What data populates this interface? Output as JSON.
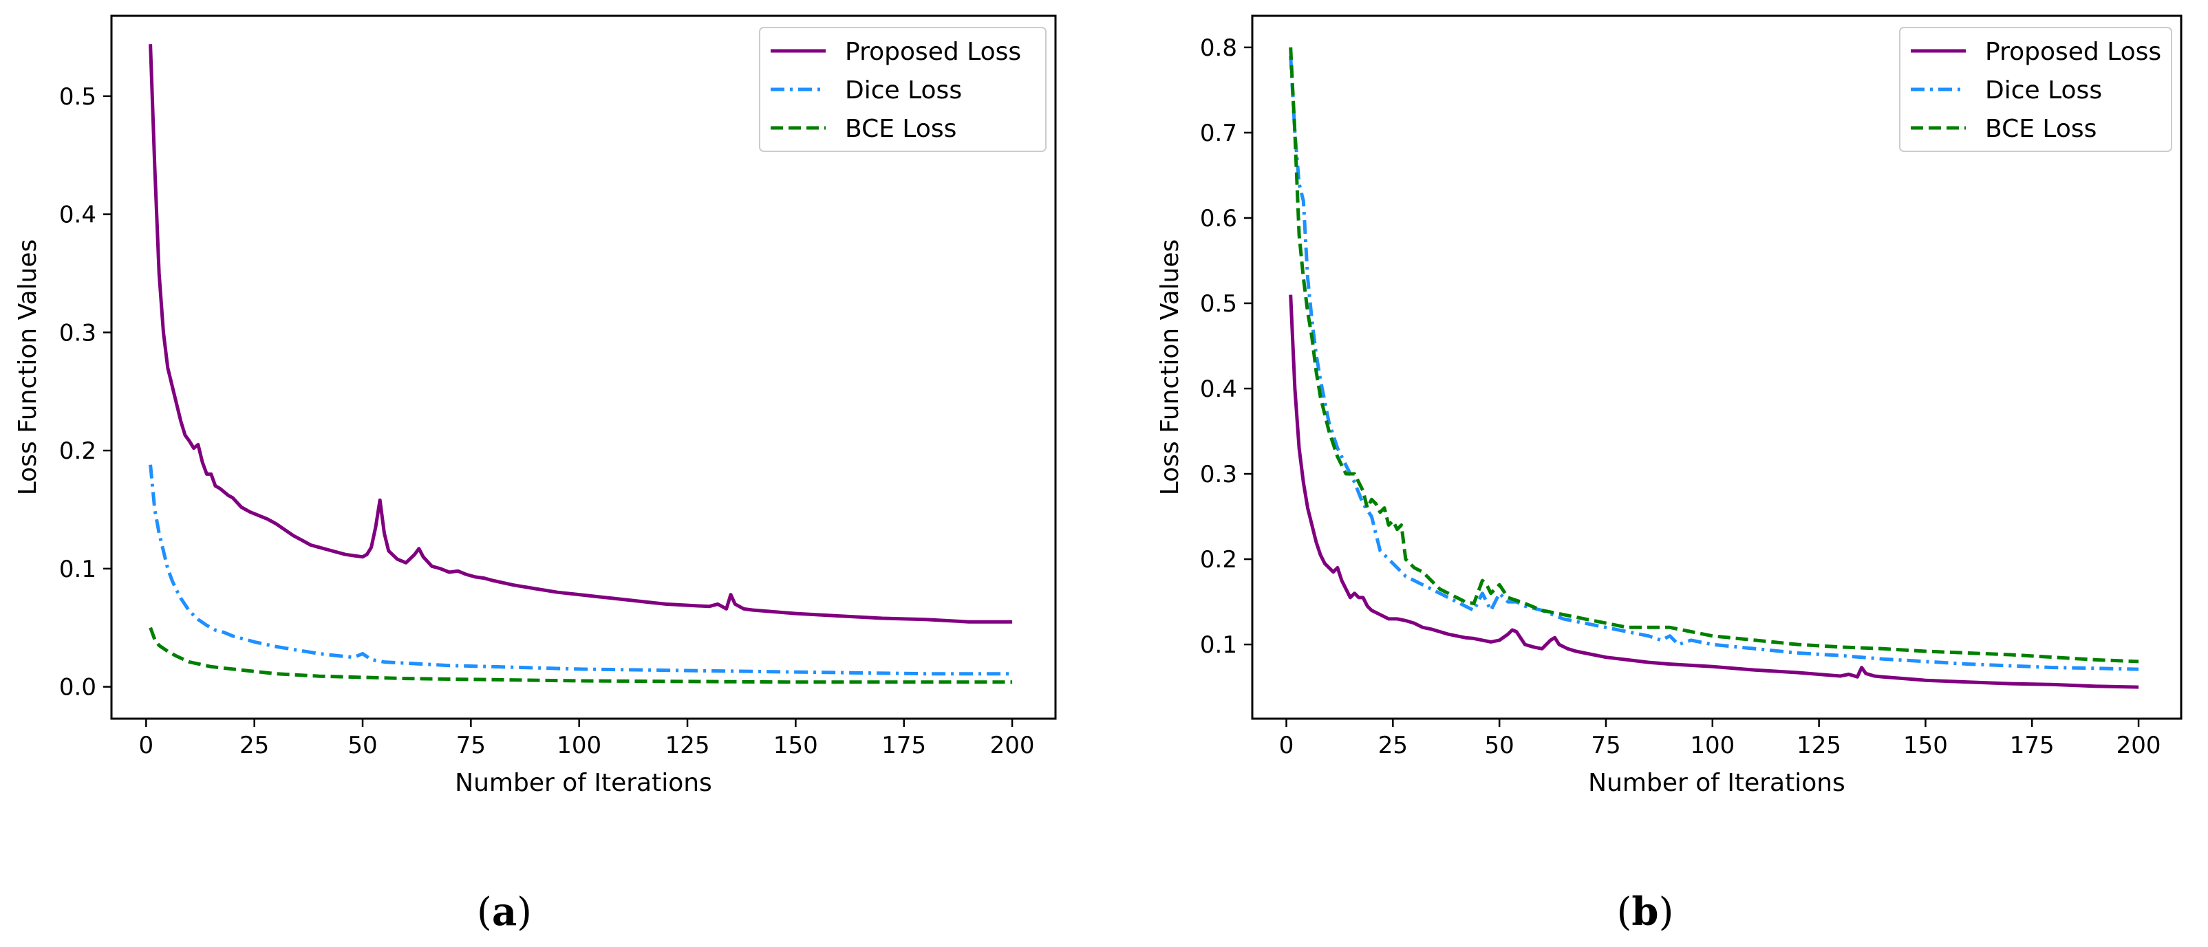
{
  "figure": {
    "panels": [
      {
        "label": "a"
      },
      {
        "label": "b"
      }
    ]
  },
  "chart_data": [
    {
      "type": "line",
      "panel": "a",
      "title": "",
      "xlabel": "Number of Iterations",
      "ylabel": "Loss Function Values",
      "xlim": [
        -8,
        210
      ],
      "ylim": [
        -0.027,
        0.568
      ],
      "xticks": [
        0,
        25,
        50,
        75,
        100,
        125,
        150,
        175,
        200
      ],
      "yticks": [
        0.0,
        0.1,
        0.2,
        0.3,
        0.4,
        0.5
      ],
      "ytick_labels": [
        "0.0",
        "0.1",
        "0.2",
        "0.3",
        "0.4",
        "0.5"
      ],
      "grid": false,
      "legend_position": "top-right",
      "series": [
        {
          "name": "Proposed Loss",
          "color": "#800080",
          "style": "solid",
          "x": [
            1,
            2,
            3,
            4,
            5,
            6,
            7,
            8,
            9,
            10,
            11,
            12,
            13,
            14,
            15,
            16,
            17,
            18,
            19,
            20,
            22,
            24,
            26,
            28,
            30,
            32,
            34,
            36,
            38,
            40,
            42,
            44,
            46,
            48,
            50,
            51,
            52,
            53,
            54,
            55,
            56,
            58,
            60,
            62,
            63,
            64,
            66,
            68,
            70,
            72,
            74,
            76,
            78,
            80,
            85,
            90,
            95,
            100,
            105,
            110,
            115,
            120,
            125,
            130,
            132,
            134,
            135,
            136,
            138,
            140,
            150,
            160,
            170,
            180,
            190,
            200
          ],
          "values": [
            0.544,
            0.44,
            0.35,
            0.3,
            0.27,
            0.255,
            0.24,
            0.225,
            0.213,
            0.208,
            0.202,
            0.205,
            0.19,
            0.18,
            0.18,
            0.17,
            0.168,
            0.165,
            0.162,
            0.16,
            0.152,
            0.148,
            0.145,
            0.142,
            0.138,
            0.133,
            0.128,
            0.124,
            0.12,
            0.118,
            0.116,
            0.114,
            0.112,
            0.111,
            0.11,
            0.112,
            0.118,
            0.135,
            0.158,
            0.13,
            0.115,
            0.108,
            0.105,
            0.112,
            0.117,
            0.11,
            0.102,
            0.1,
            0.097,
            0.098,
            0.095,
            0.093,
            0.092,
            0.09,
            0.086,
            0.083,
            0.08,
            0.078,
            0.076,
            0.074,
            0.072,
            0.07,
            0.069,
            0.068,
            0.07,
            0.066,
            0.078,
            0.07,
            0.066,
            0.065,
            0.062,
            0.06,
            0.058,
            0.057,
            0.055,
            0.055
          ]
        },
        {
          "name": "Dice Loss",
          "color": "#1e90ff",
          "style": "dashdot",
          "x": [
            1,
            2,
            3,
            4,
            5,
            6,
            7,
            8,
            10,
            12,
            14,
            16,
            18,
            20,
            25,
            30,
            35,
            40,
            45,
            48,
            50,
            52,
            55,
            60,
            70,
            80,
            90,
            100,
            120,
            140,
            160,
            180,
            200
          ],
          "values": [
            0.188,
            0.15,
            0.13,
            0.115,
            0.1,
            0.09,
            0.082,
            0.075,
            0.064,
            0.057,
            0.052,
            0.048,
            0.046,
            0.043,
            0.038,
            0.034,
            0.031,
            0.028,
            0.026,
            0.025,
            0.028,
            0.023,
            0.021,
            0.02,
            0.018,
            0.017,
            0.016,
            0.015,
            0.014,
            0.013,
            0.012,
            0.011,
            0.011
          ]
        },
        {
          "name": "BCE Loss",
          "color": "#008000",
          "style": "dashed",
          "x": [
            1,
            2,
            3,
            5,
            7,
            10,
            15,
            20,
            25,
            30,
            40,
            50,
            60,
            80,
            100,
            150,
            200
          ],
          "values": [
            0.05,
            0.04,
            0.035,
            0.03,
            0.026,
            0.021,
            0.017,
            0.015,
            0.013,
            0.011,
            0.009,
            0.008,
            0.007,
            0.006,
            0.005,
            0.004,
            0.004
          ]
        }
      ]
    },
    {
      "type": "line",
      "panel": "b",
      "title": "",
      "xlabel": "Number of Iterations",
      "ylabel": "Loss Function Values",
      "xlim": [
        -8,
        210
      ],
      "ylim": [
        0.013,
        0.837
      ],
      "xticks": [
        0,
        25,
        50,
        75,
        100,
        125,
        150,
        175,
        200
      ],
      "yticks": [
        0.1,
        0.2,
        0.3,
        0.4,
        0.5,
        0.6,
        0.7,
        0.8
      ],
      "ytick_labels": [
        "0.1",
        "0.2",
        "0.3",
        "0.4",
        "0.5",
        "0.6",
        "0.7",
        "0.8"
      ],
      "grid": false,
      "legend_position": "top-right",
      "series": [
        {
          "name": "Proposed Loss",
          "color": "#800080",
          "style": "solid",
          "x": [
            1,
            2,
            3,
            4,
            5,
            6,
            7,
            8,
            9,
            10,
            11,
            12,
            13,
            14,
            15,
            16,
            17,
            18,
            19,
            20,
            22,
            24,
            26,
            28,
            30,
            32,
            34,
            36,
            38,
            40,
            42,
            44,
            46,
            48,
            50,
            52,
            53,
            54,
            56,
            58,
            60,
            62,
            63,
            64,
            66,
            68,
            70,
            75,
            80,
            85,
            90,
            100,
            110,
            120,
            130,
            132,
            134,
            135,
            136,
            138,
            140,
            150,
            160,
            170,
            180,
            190,
            200
          ],
          "values": [
            0.51,
            0.4,
            0.33,
            0.29,
            0.26,
            0.24,
            0.22,
            0.205,
            0.195,
            0.19,
            0.185,
            0.19,
            0.175,
            0.165,
            0.155,
            0.16,
            0.155,
            0.155,
            0.145,
            0.14,
            0.135,
            0.13,
            0.13,
            0.128,
            0.125,
            0.12,
            0.118,
            0.115,
            0.112,
            0.11,
            0.108,
            0.107,
            0.105,
            0.103,
            0.105,
            0.112,
            0.117,
            0.115,
            0.1,
            0.097,
            0.095,
            0.105,
            0.108,
            0.1,
            0.095,
            0.092,
            0.09,
            0.085,
            0.082,
            0.079,
            0.077,
            0.074,
            0.07,
            0.067,
            0.063,
            0.065,
            0.062,
            0.073,
            0.066,
            0.063,
            0.062,
            0.058,
            0.056,
            0.054,
            0.053,
            0.051,
            0.05
          ]
        },
        {
          "name": "Dice Loss",
          "color": "#1e90ff",
          "style": "dashdot",
          "x": [
            1,
            2,
            3,
            4,
            5,
            6,
            7,
            8,
            10,
            12,
            14,
            16,
            18,
            20,
            22,
            24,
            26,
            28,
            30,
            32,
            34,
            36,
            38,
            40,
            42,
            44,
            46,
            48,
            50,
            52,
            54,
            56,
            60,
            65,
            70,
            75,
            80,
            85,
            88,
            90,
            92,
            95,
            100,
            110,
            120,
            130,
            140,
            150,
            160,
            170,
            180,
            190,
            200
          ],
          "values": [
            0.79,
            0.7,
            0.64,
            0.62,
            0.53,
            0.48,
            0.44,
            0.41,
            0.36,
            0.33,
            0.31,
            0.29,
            0.265,
            0.25,
            0.21,
            0.2,
            0.19,
            0.18,
            0.175,
            0.17,
            0.165,
            0.16,
            0.155,
            0.15,
            0.145,
            0.14,
            0.16,
            0.14,
            0.16,
            0.15,
            0.15,
            0.145,
            0.14,
            0.13,
            0.125,
            0.12,
            0.115,
            0.11,
            0.105,
            0.11,
            0.1,
            0.105,
            0.1,
            0.095,
            0.09,
            0.087,
            0.083,
            0.08,
            0.077,
            0.075,
            0.073,
            0.072,
            0.071
          ]
        },
        {
          "name": "BCE Loss",
          "color": "#008000",
          "style": "dashed",
          "x": [
            1,
            2,
            3,
            4,
            5,
            6,
            7,
            8,
            10,
            12,
            14,
            16,
            17,
            18,
            19,
            20,
            21,
            22,
            23,
            24,
            25,
            26,
            27,
            28,
            29,
            30,
            32,
            34,
            36,
            38,
            40,
            42,
            44,
            46,
            47,
            48,
            50,
            52,
            55,
            60,
            65,
            70,
            75,
            80,
            85,
            90,
            95,
            100,
            110,
            120,
            130,
            140,
            150,
            160,
            170,
            180,
            190,
            200
          ],
          "values": [
            0.8,
            0.7,
            0.58,
            0.53,
            0.49,
            0.46,
            0.42,
            0.39,
            0.35,
            0.32,
            0.3,
            0.3,
            0.29,
            0.28,
            0.26,
            0.27,
            0.265,
            0.255,
            0.26,
            0.24,
            0.245,
            0.235,
            0.24,
            0.2,
            0.195,
            0.19,
            0.185,
            0.175,
            0.165,
            0.16,
            0.155,
            0.15,
            0.148,
            0.175,
            0.17,
            0.16,
            0.17,
            0.155,
            0.15,
            0.14,
            0.135,
            0.13,
            0.125,
            0.12,
            0.12,
            0.12,
            0.115,
            0.11,
            0.105,
            0.1,
            0.097,
            0.095,
            0.092,
            0.09,
            0.088,
            0.085,
            0.082,
            0.08
          ]
        }
      ]
    }
  ]
}
